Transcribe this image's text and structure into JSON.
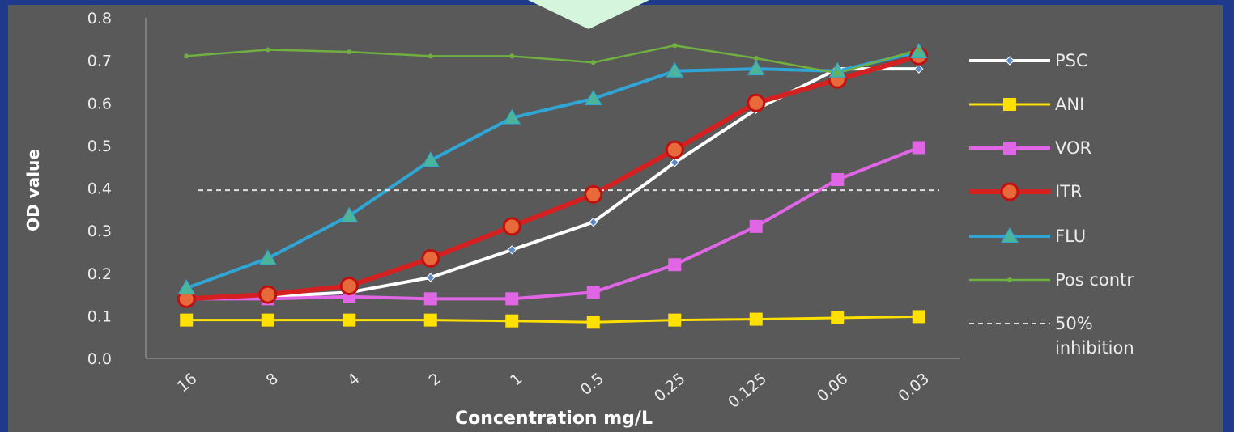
{
  "chart_data": {
    "type": "line",
    "xlabel": "Concentration mg/L",
    "ylabel": "OD value",
    "ylim": [
      0,
      0.8
    ],
    "yticks": [
      "0.0",
      "0.1",
      "0.2",
      "0.3",
      "0.4",
      "0.5",
      "0.6",
      "0.7",
      "0.8"
    ],
    "categories": [
      "16",
      "8",
      "4",
      "2",
      "1",
      "0.5",
      "0.25",
      "0.125",
      "0.06",
      "0.03"
    ],
    "series": [
      {
        "name": "PSC",
        "color": "#ffffff",
        "marker": "diamond",
        "values": [
          0.14,
          0.145,
          0.155,
          0.19,
          0.255,
          0.32,
          0.46,
          0.585,
          0.68,
          0.68
        ]
      },
      {
        "name": "ANI",
        "color": "#ffe000",
        "marker": "square",
        "values": [
          0.09,
          0.09,
          0.09,
          0.09,
          0.088,
          0.085,
          0.09,
          0.092,
          0.095,
          0.098
        ]
      },
      {
        "name": "VOR",
        "color": "#e066e6",
        "marker": "square",
        "values": [
          0.14,
          0.14,
          0.145,
          0.14,
          0.14,
          0.155,
          0.22,
          0.31,
          0.42,
          0.495
        ]
      },
      {
        "name": "ITR",
        "color": "#d42020",
        "marker": "circle",
        "values": [
          0.14,
          0.15,
          0.17,
          0.235,
          0.31,
          0.385,
          0.49,
          0.6,
          0.655,
          0.71
        ]
      },
      {
        "name": "FLU",
        "color": "#2fa6d6",
        "marker": "triangle",
        "values": [
          0.165,
          0.235,
          0.335,
          0.465,
          0.565,
          0.61,
          0.675,
          0.68,
          0.675,
          0.72
        ]
      },
      {
        "name": "Pos contr",
        "color": "#70b040",
        "marker": "dot",
        "values": [
          0.71,
          0.725,
          0.72,
          0.71,
          0.71,
          0.695,
          0.735,
          0.705,
          0.67,
          0.725
        ]
      },
      {
        "name": "50% inhibition",
        "name_lines": [
          "50%",
          "inhibition"
        ],
        "color": "#e0e0e0",
        "dashed": true,
        "values": [
          0.395,
          0.395,
          0.395,
          0.395,
          0.395,
          0.395,
          0.395,
          0.395,
          0.395,
          0.395
        ]
      }
    ],
    "legend": "right",
    "grid": false
  },
  "colors": {
    "frame": "#1f3a8a",
    "plot_background": "#595959",
    "arrow": "#d5f5dd"
  }
}
